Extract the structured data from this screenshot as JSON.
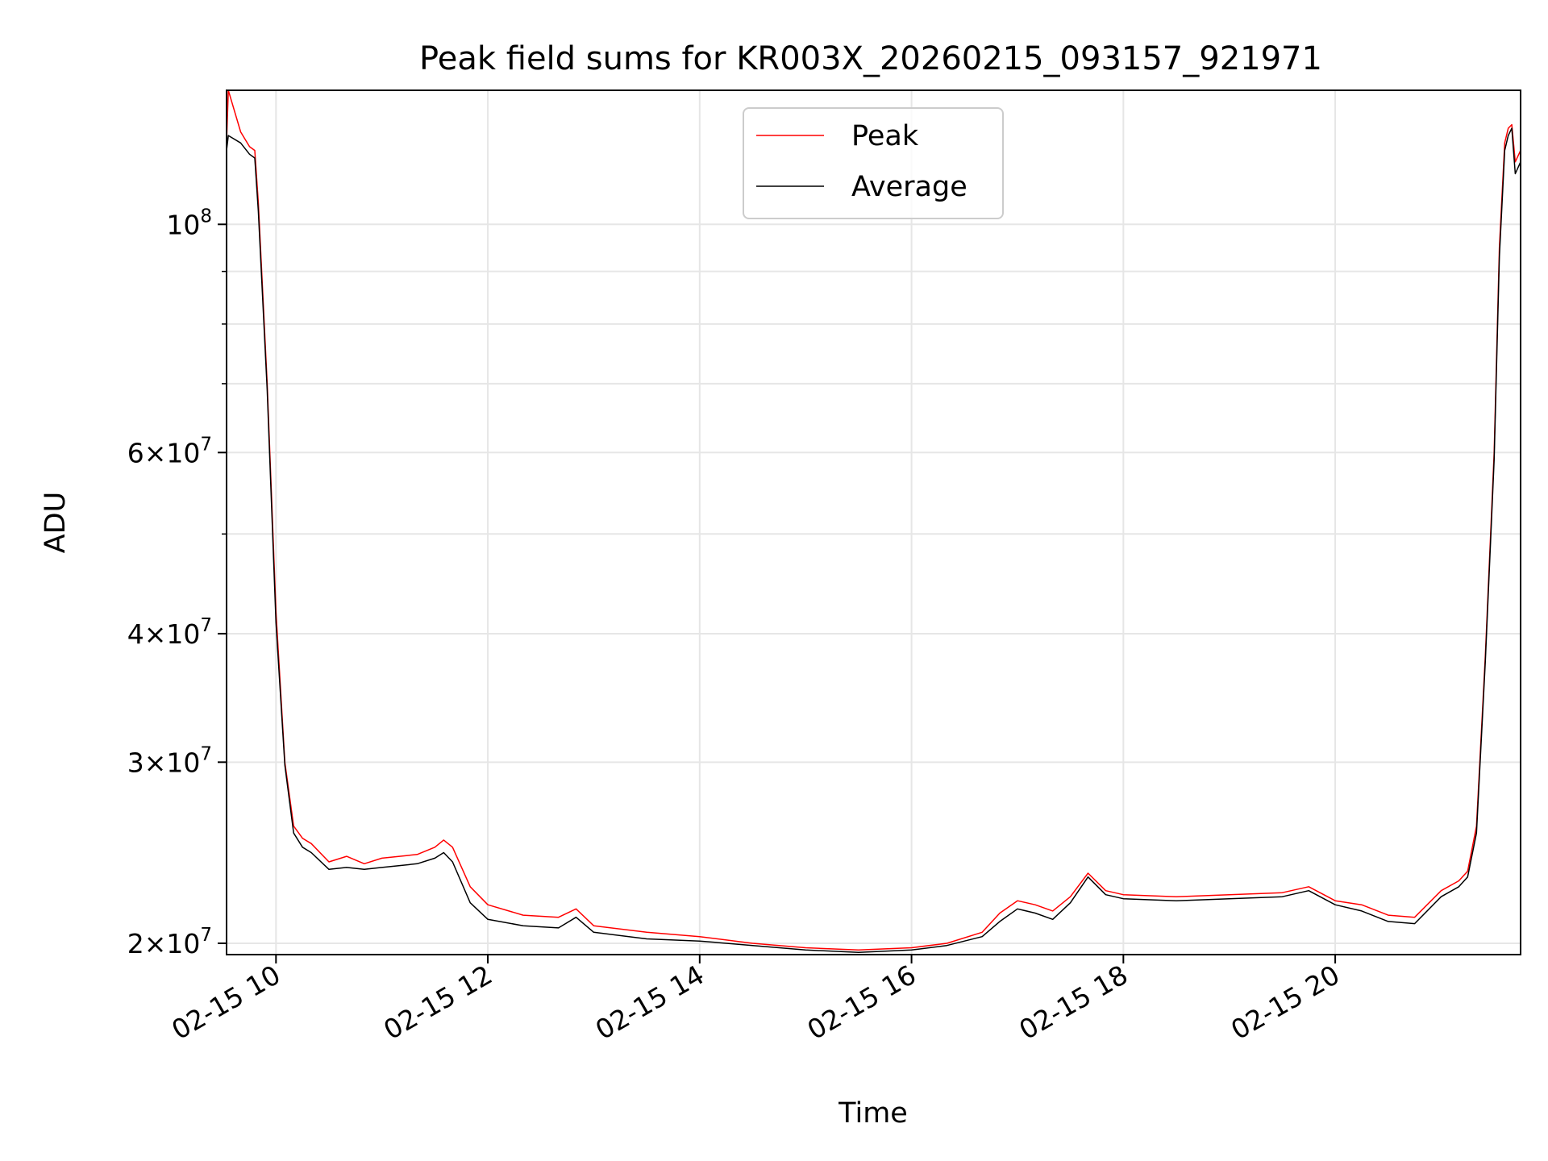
{
  "chart_data": {
    "type": "line",
    "title": "Peak field sums for KR003X_20260215_093157_921971",
    "xlabel": "Time",
    "ylabel": "ADU",
    "x_range": [
      "2026-02-15 09:32",
      "2026-02-15 21:45"
    ],
    "y_range": [
      19500000,
      135000000
    ],
    "yscale": "log",
    "grid": true,
    "legend_position": "top-center",
    "x_ticks": [
      "02-15 10",
      "02-15 12",
      "02-15 14",
      "02-15 16",
      "02-15 18",
      "02-15 20"
    ],
    "x_tick_values": [
      "2026-02-15 10:00",
      "2026-02-15 12:00",
      "2026-02-15 14:00",
      "2026-02-15 16:00",
      "2026-02-15 18:00",
      "2026-02-15 20:00"
    ],
    "y_ticks": [
      {
        "value": 20000000,
        "mantissa": "2",
        "exponent": "7"
      },
      {
        "value": 30000000,
        "mantissa": "3",
        "exponent": "7"
      },
      {
        "value": 40000000,
        "mantissa": "4",
        "exponent": "7"
      },
      {
        "value": 60000000,
        "mantissa": "6",
        "exponent": "7"
      },
      {
        "value": 100000000,
        "mantissa": "",
        "exponent": "8"
      }
    ],
    "y_minor_ticks": [
      50000000,
      70000000,
      80000000,
      90000000
    ],
    "series": [
      {
        "name": "Peak",
        "color": "#ff0000",
        "x": [
          "2026-02-15 09:32",
          "2026-02-15 09:33",
          "2026-02-15 09:40",
          "2026-02-15 09:45",
          "2026-02-15 09:48",
          "2026-02-15 09:50",
          "2026-02-15 09:55",
          "2026-02-15 10:00",
          "2026-02-15 10:05",
          "2026-02-15 10:10",
          "2026-02-15 10:15",
          "2026-02-15 10:20",
          "2026-02-15 10:30",
          "2026-02-15 10:40",
          "2026-02-15 10:50",
          "2026-02-15 11:00",
          "2026-02-15 11:10",
          "2026-02-15 11:20",
          "2026-02-15 11:30",
          "2026-02-15 11:35",
          "2026-02-15 11:40",
          "2026-02-15 11:50",
          "2026-02-15 12:00",
          "2026-02-15 12:20",
          "2026-02-15 12:40",
          "2026-02-15 12:50",
          "2026-02-15 13:00",
          "2026-02-15 13:30",
          "2026-02-15 14:00",
          "2026-02-15 14:30",
          "2026-02-15 15:00",
          "2026-02-15 15:30",
          "2026-02-15 16:00",
          "2026-02-15 16:20",
          "2026-02-15 16:40",
          "2026-02-15 16:50",
          "2026-02-15 17:00",
          "2026-02-15 17:10",
          "2026-02-15 17:20",
          "2026-02-15 17:30",
          "2026-02-15 17:40",
          "2026-02-15 17:50",
          "2026-02-15 18:00",
          "2026-02-15 18:30",
          "2026-02-15 19:00",
          "2026-02-15 19:30",
          "2026-02-15 19:45",
          "2026-02-15 20:00",
          "2026-02-15 20:15",
          "2026-02-15 20:30",
          "2026-02-15 20:45",
          "2026-02-15 21:00",
          "2026-02-15 21:10",
          "2026-02-15 21:15",
          "2026-02-15 21:20",
          "2026-02-15 21:25",
          "2026-02-15 21:30",
          "2026-02-15 21:33",
          "2026-02-15 21:36",
          "2026-02-15 21:38",
          "2026-02-15 21:40",
          "2026-02-15 21:42",
          "2026-02-15 21:45"
        ],
        "y": [
          120000000,
          135000000,
          123000000,
          119000000,
          118000000,
          105000000,
          70000000,
          42000000,
          30000000,
          26000000,
          25300000,
          25000000,
          24000000,
          24300000,
          23900000,
          24200000,
          24300000,
          24400000,
          24800000,
          25200000,
          24800000,
          22700000,
          21800000,
          21300000,
          21200000,
          21600000,
          20800000,
          20500000,
          20300000,
          20000000,
          19800000,
          19700000,
          19800000,
          20000000,
          20500000,
          21400000,
          22000000,
          21800000,
          21500000,
          22200000,
          23400000,
          22500000,
          22300000,
          22200000,
          22300000,
          22400000,
          22700000,
          22000000,
          21800000,
          21300000,
          21200000,
          22500000,
          23000000,
          23500000,
          26000000,
          38000000,
          60000000,
          95000000,
          120000000,
          124000000,
          125000000,
          115000000,
          118000000
        ]
      },
      {
        "name": "Average",
        "color": "#000000",
        "x": [
          "2026-02-15 09:32",
          "2026-02-15 09:33",
          "2026-02-15 09:40",
          "2026-02-15 09:45",
          "2026-02-15 09:48",
          "2026-02-15 09:50",
          "2026-02-15 09:55",
          "2026-02-15 10:00",
          "2026-02-15 10:05",
          "2026-02-15 10:10",
          "2026-02-15 10:15",
          "2026-02-15 10:20",
          "2026-02-15 10:30",
          "2026-02-15 10:40",
          "2026-02-15 10:50",
          "2026-02-15 11:00",
          "2026-02-15 11:10",
          "2026-02-15 11:20",
          "2026-02-15 11:30",
          "2026-02-15 11:35",
          "2026-02-15 11:40",
          "2026-02-15 11:50",
          "2026-02-15 12:00",
          "2026-02-15 12:20",
          "2026-02-15 12:40",
          "2026-02-15 12:50",
          "2026-02-15 13:00",
          "2026-02-15 13:30",
          "2026-02-15 14:00",
          "2026-02-15 14:30",
          "2026-02-15 15:00",
          "2026-02-15 15:30",
          "2026-02-15 16:00",
          "2026-02-15 16:20",
          "2026-02-15 16:40",
          "2026-02-15 16:50",
          "2026-02-15 17:00",
          "2026-02-15 17:10",
          "2026-02-15 17:20",
          "2026-02-15 17:30",
          "2026-02-15 17:40",
          "2026-02-15 17:50",
          "2026-02-15 18:00",
          "2026-02-15 18:30",
          "2026-02-15 19:00",
          "2026-02-15 19:30",
          "2026-02-15 19:45",
          "2026-02-15 20:00",
          "2026-02-15 20:15",
          "2026-02-15 20:30",
          "2026-02-15 20:45",
          "2026-02-15 21:00",
          "2026-02-15 21:10",
          "2026-02-15 21:15",
          "2026-02-15 21:20",
          "2026-02-15 21:25",
          "2026-02-15 21:30",
          "2026-02-15 21:33",
          "2026-02-15 21:36",
          "2026-02-15 21:38",
          "2026-02-15 21:40",
          "2026-02-15 21:42",
          "2026-02-15 21:45"
        ],
        "y": [
          118000000,
          122000000,
          120000000,
          117000000,
          116000000,
          103000000,
          69000000,
          41000000,
          29800000,
          25600000,
          24800000,
          24500000,
          23600000,
          23700000,
          23600000,
          23700000,
          23800000,
          23900000,
          24200000,
          24500000,
          24000000,
          21900000,
          21100000,
          20800000,
          20700000,
          21200000,
          20500000,
          20200000,
          20100000,
          19900000,
          19700000,
          19600000,
          19700000,
          19900000,
          20300000,
          21000000,
          21600000,
          21400000,
          21100000,
          21900000,
          23200000,
          22300000,
          22100000,
          22000000,
          22100000,
          22200000,
          22500000,
          21800000,
          21500000,
          21000000,
          20900000,
          22200000,
          22700000,
          23200000,
          25600000,
          37500000,
          59000000,
          93000000,
          118000000,
          122000000,
          124000000,
          112000000,
          115000000
        ]
      }
    ]
  }
}
